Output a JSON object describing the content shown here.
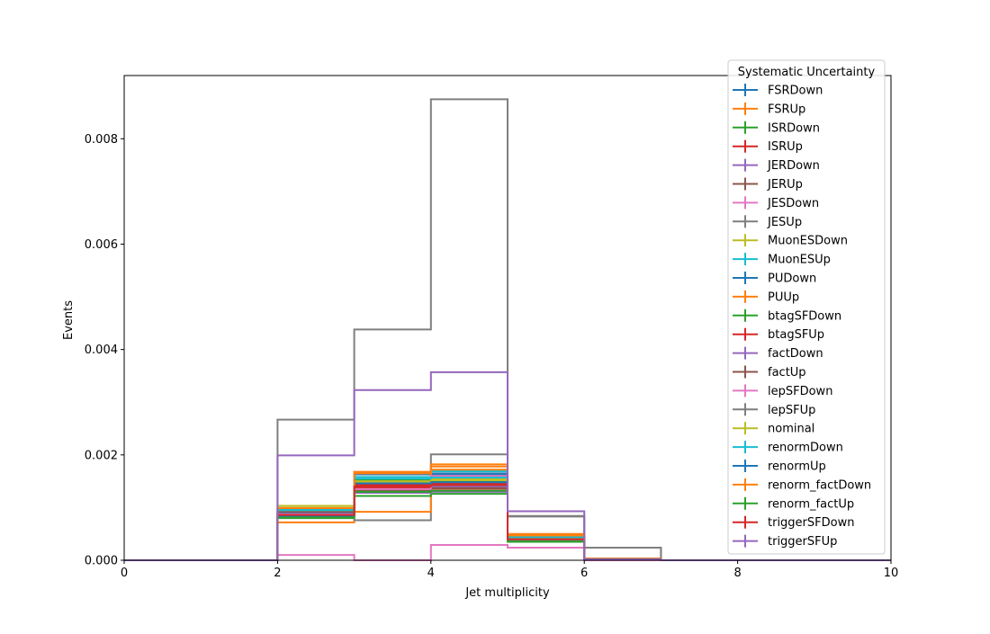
{
  "chart_data": {
    "type": "step",
    "xlabel": "Jet multiplicity",
    "ylabel": "Events",
    "xlim": [
      0,
      10
    ],
    "ylim": [
      0,
      0.0092
    ],
    "x_ticks": [
      0,
      2,
      4,
      6,
      8,
      10
    ],
    "y_ticks": [
      0.0,
      0.002,
      0.004,
      0.006,
      0.008
    ],
    "x_tick_labels": [
      "0",
      "2",
      "4",
      "6",
      "8",
      "10"
    ],
    "y_tick_labels": [
      "0.000",
      "0.002",
      "0.004",
      "0.006",
      "0.008"
    ],
    "bin_edges": [
      0,
      1,
      2,
      3,
      4,
      5,
      6,
      7,
      8,
      9,
      10
    ],
    "legend_title": "Systematic Uncertainty",
    "legend_position": "upper right",
    "series": [
      {
        "name": "FSRDown",
        "color": "#1f77b4",
        "values": [
          0,
          0,
          0.00082,
          0.00163,
          0.00165,
          0.00045,
          2e-05,
          0,
          0,
          0
        ]
      },
      {
        "name": "FSRUp",
        "color": "#ff7f0e",
        "values": [
          0,
          0,
          0.00072,
          0.00168,
          0.00178,
          0.00048,
          3e-05,
          0,
          0,
          0
        ]
      },
      {
        "name": "ISRDown",
        "color": "#2ca02c",
        "values": [
          0,
          0,
          0.00083,
          0.00152,
          0.0015,
          0.00042,
          3e-05,
          0,
          0,
          0
        ]
      },
      {
        "name": "ISRUp",
        "color": "#d62728",
        "values": [
          0,
          0,
          0.00086,
          0.00143,
          0.00145,
          0.0004,
          2e-05,
          0,
          0,
          0
        ]
      },
      {
        "name": "JERDown",
        "color": "#9467bd",
        "values": [
          0,
          0,
          0.00087,
          0.00137,
          0.0014,
          0.00041,
          2e-05,
          0,
          0,
          0
        ]
      },
      {
        "name": "JERUp",
        "color": "#8c564b",
        "values": [
          0,
          0,
          0.00089,
          0.0014,
          0.00143,
          0.00041,
          2e-05,
          0,
          0,
          0
        ]
      },
      {
        "name": "JESDown",
        "color": "#e377c2",
        "values": [
          0,
          0,
          0.0001,
          0.0,
          0.00029,
          0.00024,
          0.0,
          0,
          0,
          0
        ]
      },
      {
        "name": "JESUp",
        "color": "#7f7f7f",
        "values": [
          0,
          0,
          0.0009,
          0.00076,
          0.00201,
          0.00084,
          0.00024,
          0,
          0,
          0
        ]
      },
      {
        "name": "MuonESDown",
        "color": "#bcbd22",
        "values": [
          0,
          0,
          0.00103,
          0.00148,
          0.00154,
          0.00041,
          2e-05,
          0,
          0,
          0
        ]
      },
      {
        "name": "MuonESUp",
        "color": "#17becf",
        "values": [
          0,
          0,
          0.00097,
          0.00158,
          0.00169,
          0.00046,
          2e-05,
          0,
          0,
          0
        ]
      },
      {
        "name": "PUDown",
        "color": "#1f77b4",
        "values": [
          0,
          0,
          0.00089,
          0.00163,
          0.00162,
          0.00044,
          2e-05,
          0,
          0,
          0
        ]
      },
      {
        "name": "PUUp",
        "color": "#ff7f0e",
        "values": [
          0,
          0,
          0.00094,
          0.00092,
          0.00182,
          0.0005,
          3e-05,
          0,
          0,
          0
        ]
      },
      {
        "name": "btagSFDown",
        "color": "#2ca02c",
        "values": [
          0,
          0,
          0.0008,
          0.00122,
          0.00126,
          0.00035,
          2e-05,
          0,
          0,
          0
        ]
      },
      {
        "name": "btagSFUp",
        "color": "#d62728",
        "values": [
          0,
          0,
          0.00088,
          0.00137,
          0.00136,
          0.00038,
          2e-05,
          0,
          0,
          0
        ]
      },
      {
        "name": "factDown",
        "color": "#9467bd",
        "values": [
          0,
          0,
          0.00088,
          0.00128,
          0.0013,
          0.00036,
          2e-05,
          0,
          0,
          0
        ]
      },
      {
        "name": "factUp",
        "color": "#8c564b",
        "values": [
          0,
          0,
          0.00092,
          0.00133,
          0.00137,
          0.00037,
          2e-05,
          0,
          0,
          0
        ]
      },
      {
        "name": "lepSFDown",
        "color": "#e377c2",
        "values": [
          0,
          0,
          0.00087,
          0.00135,
          0.0016,
          0.00037,
          2e-05,
          0,
          0,
          0
        ]
      },
      {
        "name": "lepSFUp",
        "color": "#7f7f7f",
        "values": [
          0,
          0,
          0.00267,
          0.00438,
          0.00875,
          0.00083,
          0.00024,
          0,
          0,
          0
        ]
      },
      {
        "name": "nominal",
        "color": "#bcbd22",
        "values": [
          0,
          0,
          0.00103,
          0.0015,
          0.00152,
          0.00041,
          2e-05,
          0,
          0,
          0
        ]
      },
      {
        "name": "renormDown",
        "color": "#17becf",
        "values": [
          0,
          0,
          0.00095,
          0.00155,
          0.00157,
          0.00044,
          2e-05,
          0,
          0,
          0
        ]
      },
      {
        "name": "renormUp",
        "color": "#1f77b4",
        "values": [
          0,
          0,
          0.00084,
          0.00146,
          0.00148,
          0.0004,
          2e-05,
          0,
          0,
          0
        ]
      },
      {
        "name": "renorm_factDown",
        "color": "#ff7f0e",
        "values": [
          0,
          0,
          0.00099,
          0.00165,
          0.00172,
          0.00047,
          3e-05,
          0,
          0,
          0
        ]
      },
      {
        "name": "renorm_factUp",
        "color": "#2ca02c",
        "values": [
          0,
          0,
          0.00081,
          0.0013,
          0.00132,
          0.00036,
          2e-05,
          0,
          0,
          0
        ]
      },
      {
        "name": "triggerSFDown",
        "color": "#d62728",
        "values": [
          0,
          0,
          0.00086,
          0.0014,
          0.00143,
          0.0004,
          2e-05,
          0,
          0,
          0
        ]
      },
      {
        "name": "triggerSFUp",
        "color": "#9467bd",
        "values": [
          0,
          0,
          0.00199,
          0.00323,
          0.00357,
          0.00093,
          2e-05,
          0,
          0,
          0
        ]
      }
    ]
  }
}
